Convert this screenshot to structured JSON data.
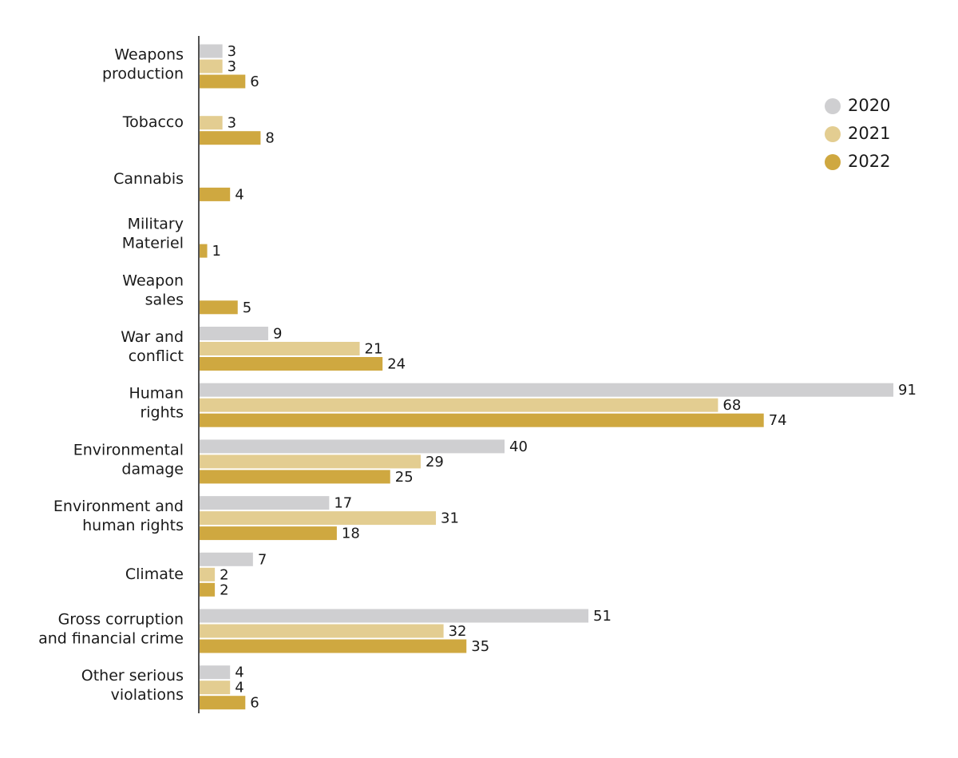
{
  "chart_data": {
    "type": "bar",
    "orientation": "horizontal",
    "categories": [
      [
        "Weapons",
        "production"
      ],
      [
        "Tobacco"
      ],
      [
        "Cannabis"
      ],
      [
        "Military",
        "Materiel"
      ],
      [
        "Weapon",
        "sales"
      ],
      [
        "War and",
        "conflict"
      ],
      [
        "Human",
        "rights"
      ],
      [
        "Environmental",
        "damage"
      ],
      [
        "Environment and",
        "human rights"
      ],
      [
        "Climate"
      ],
      [
        "Gross corruption",
        "and financial crime"
      ],
      [
        "Other serious",
        "violations"
      ]
    ],
    "series": [
      {
        "name": "2020",
        "color": "#cfcfd1",
        "values": [
          3,
          null,
          null,
          null,
          null,
          9,
          91,
          40,
          17,
          7,
          51,
          4
        ]
      },
      {
        "name": "2021",
        "color": "#e3cd91",
        "values": [
          3,
          3,
          null,
          null,
          null,
          21,
          68,
          29,
          31,
          2,
          32,
          4
        ]
      },
      {
        "name": "2022",
        "color": "#cfa840",
        "values": [
          6,
          8,
          4,
          1,
          5,
          24,
          74,
          25,
          18,
          2,
          35,
          6
        ]
      }
    ],
    "legend": "upper right",
    "data_labels": true
  }
}
